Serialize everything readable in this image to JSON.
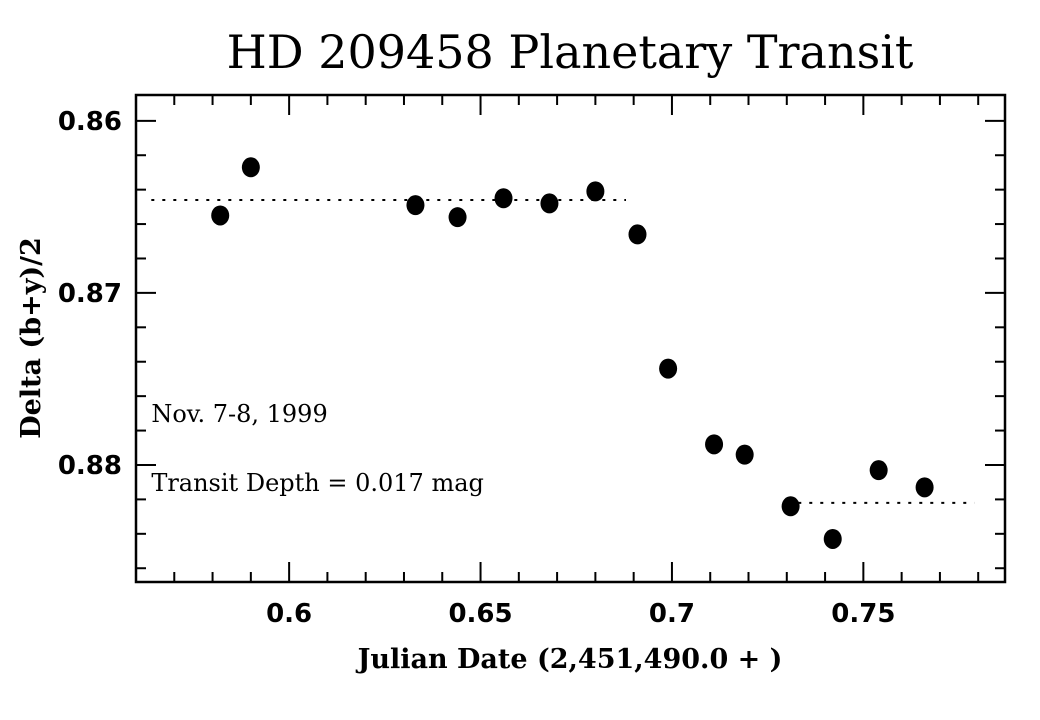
{
  "chart_data": {
    "type": "scatter",
    "title": "HD 209458 Planetary Transit",
    "xlabel": "Julian Date (2,451,490.0 + )",
    "ylabel": "Delta (b+y)/2",
    "xlim": [
      0.56,
      0.787
    ],
    "ylim": [
      0.8585,
      0.8868
    ],
    "y_inverted": true,
    "x_ticks": [
      0.6,
      0.65,
      0.7,
      0.75
    ],
    "x_tick_labels": [
      "0.6",
      "0.65",
      "0.7",
      "0.75"
    ],
    "y_ticks": [
      0.86,
      0.87,
      0.88
    ],
    "y_tick_labels": [
      "0.86",
      "0.87",
      "0.88"
    ],
    "grid": false,
    "legend": "none",
    "marker_color": "#000000",
    "points": [
      {
        "x": 0.582,
        "y": 0.8655
      },
      {
        "x": 0.59,
        "y": 0.8627
      },
      {
        "x": 0.633,
        "y": 0.8649
      },
      {
        "x": 0.644,
        "y": 0.8656
      },
      {
        "x": 0.656,
        "y": 0.8645
      },
      {
        "x": 0.668,
        "y": 0.8648
      },
      {
        "x": 0.68,
        "y": 0.8641
      },
      {
        "x": 0.691,
        "y": 0.8666
      },
      {
        "x": 0.699,
        "y": 0.8744
      },
      {
        "x": 0.711,
        "y": 0.8788
      },
      {
        "x": 0.719,
        "y": 0.8794
      },
      {
        "x": 0.731,
        "y": 0.8824
      },
      {
        "x": 0.742,
        "y": 0.8843
      },
      {
        "x": 0.754,
        "y": 0.8803
      },
      {
        "x": 0.766,
        "y": 0.8813
      }
    ],
    "reference_lines": [
      {
        "style": "dotted",
        "y": 0.8646,
        "x_range": [
          0.564,
          0.688
        ]
      },
      {
        "style": "dotted",
        "y": 0.8822,
        "x_range": [
          0.733,
          0.779
        ]
      }
    ],
    "annotations": [
      {
        "text": "Nov. 7-8, 1999",
        "x": 0.564,
        "y": 0.8775
      },
      {
        "text": "Transit Depth = 0.017 mag",
        "x": 0.564,
        "y": 0.8815
      }
    ]
  }
}
